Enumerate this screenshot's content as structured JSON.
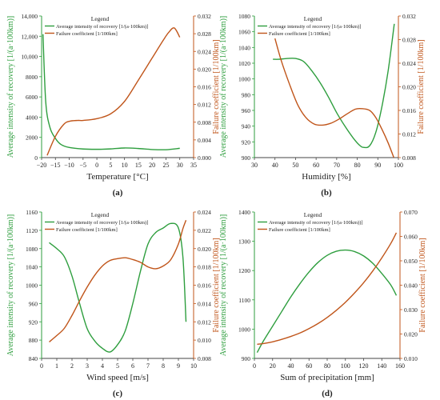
{
  "figure": {
    "colors": {
      "recovery": "#2e9e3e",
      "failure": "#c0551a",
      "axis": "#444444"
    },
    "legend_title": "Legend",
    "legend_recovery": "Average intensity of recovery [1/(a·100km)]",
    "legend_failure": "Failure coefficient [1/100km]"
  },
  "chart_data": [
    {
      "type": "line",
      "panel_label": "(a)",
      "xlabel": "Temperature [°C]",
      "ylabel_left": "Average intensity of recovery [1/(a·100km)]",
      "ylabel_right": "Failure coefficient [1/100km]",
      "xlim": [
        -20,
        35
      ],
      "ylim_left": [
        0,
        14000
      ],
      "ylim_right": [
        0,
        0.032
      ],
      "xticks": [
        -20,
        -15,
        -10,
        -5,
        0,
        5,
        10,
        15,
        20,
        25,
        30,
        35
      ],
      "yticks_left": [
        0,
        2000,
        4000,
        6000,
        8000,
        10000,
        12000,
        14000
      ],
      "yticks_right": [
        0,
        0.004,
        0.008,
        0.012,
        0.016,
        0.02,
        0.024,
        0.028,
        0.032
      ],
      "xtick_labels": [
        "−20",
        "−15",
        "−10",
        "−5",
        "0",
        "5",
        "10",
        "15",
        "20",
        "25",
        "30",
        "35"
      ],
      "ytick_labels_left": [
        "0",
        "2000",
        "4000",
        "6000",
        "8000",
        "10,000",
        "12,000",
        "14,000"
      ],
      "ytick_labels_right": [
        "0.000",
        "0.004",
        "0.008",
        "0.012",
        "0.016",
        "0.020",
        "0.024",
        "0.028",
        "0.032"
      ],
      "legend": {
        "title": "Legend",
        "items": [
          "Average intensity of recovery [1/(a·100km)]",
          "Failure coefficient [1/100km]"
        ]
      },
      "series": [
        {
          "name": "Average intensity of recovery [1/(a·100km)]",
          "axis": "left",
          "x": [
            -19.5,
            -18.5,
            -17,
            -15,
            -13,
            -10,
            -5,
            0,
            5,
            10,
            15,
            20,
            25,
            30
          ],
          "y": [
            12200,
            5500,
            3000,
            1900,
            1300,
            1000,
            850,
            820,
            860,
            950,
            900,
            800,
            780,
            920
          ]
        },
        {
          "name": "Failure coefficient [1/100km]",
          "axis": "right",
          "x": [
            -18,
            -15,
            -12,
            -10,
            -7,
            -5,
            0,
            5,
            10,
            15,
            20,
            24,
            26,
            28,
            30
          ],
          "y": [
            0.0005,
            0.0048,
            0.0075,
            0.0082,
            0.0084,
            0.0084,
            0.0088,
            0.0099,
            0.0127,
            0.0175,
            0.0225,
            0.0265,
            0.0283,
            0.0293,
            0.0272
          ]
        }
      ]
    },
    {
      "type": "line",
      "panel_label": "(b)",
      "xlabel": "Humidity [%]",
      "ylabel_left": "Average intensity of recovery [1/(a·100km)]",
      "ylabel_right": "Failure coefficient [1/100km]",
      "xlim": [
        30,
        100
      ],
      "ylim_left": [
        900,
        1080
      ],
      "ylim_right": [
        0.008,
        0.032
      ],
      "xticks": [
        30,
        40,
        50,
        60,
        70,
        80,
        90,
        100
      ],
      "yticks_left": [
        900,
        920,
        940,
        960,
        980,
        1000,
        1020,
        1040,
        1060,
        1080
      ],
      "yticks_right": [
        0.008,
        0.012,
        0.016,
        0.02,
        0.024,
        0.028,
        0.032
      ],
      "xtick_labels": [
        "30",
        "40",
        "50",
        "60",
        "70",
        "80",
        "90",
        "100"
      ],
      "ytick_labels_left": [
        "900",
        "920",
        "940",
        "960",
        "980",
        "1000",
        "1020",
        "1040",
        "1060",
        "1080"
      ],
      "ytick_labels_right": [
        "0.008",
        "0.012",
        "0.016",
        "0.020",
        "0.024",
        "0.028",
        "0.032"
      ],
      "legend": {
        "title": "Legend",
        "items": [
          "Average intensity of recovery [1/(a·100km)]",
          "Failure coefficient [1/100km]"
        ]
      },
      "series": [
        {
          "name": "Average intensity of recovery [1/(a·100km)]",
          "axis": "left",
          "x": [
            39,
            42,
            46,
            50,
            54,
            58,
            62,
            66,
            70,
            74,
            78,
            81,
            83,
            86,
            89,
            92,
            95,
            98
          ],
          "y": [
            1025,
            1025,
            1026,
            1026,
            1022,
            1010,
            995,
            977,
            957,
            940,
            925,
            916,
            913,
            915,
            932,
            965,
            1010,
            1070
          ]
        },
        {
          "name": "Failure coefficient [1/100km]",
          "axis": "right",
          "x": [
            40,
            43,
            47,
            51,
            55,
            59,
            63,
            67,
            71,
            75,
            79,
            82,
            86,
            89,
            92,
            95,
            98
          ],
          "y": [
            0.0282,
            0.0245,
            0.0205,
            0.017,
            0.0148,
            0.0137,
            0.0135,
            0.0138,
            0.0145,
            0.0154,
            0.0162,
            0.0163,
            0.016,
            0.0148,
            0.0128,
            0.0105,
            0.0078
          ]
        }
      ]
    },
    {
      "type": "line",
      "panel_label": "(c)",
      "xlabel": "Wind speed [m/s]",
      "ylabel_left": "Average intensity of recovery [1/(a·100km)]",
      "ylabel_right": "Failure coefficient [1/100km]",
      "xlim": [
        0,
        10
      ],
      "ylim_left": [
        840,
        1160
      ],
      "ylim_right": [
        0.008,
        0.024
      ],
      "xticks": [
        0,
        1,
        2,
        3,
        4,
        5,
        6,
        7,
        8,
        9,
        10
      ],
      "yticks_left": [
        840,
        880,
        920,
        960,
        1000,
        1040,
        1080,
        1120,
        1160
      ],
      "yticks_right": [
        0.008,
        0.01,
        0.012,
        0.014,
        0.016,
        0.018,
        0.02,
        0.022,
        0.024
      ],
      "xtick_labels": [
        "0",
        "1",
        "2",
        "3",
        "4",
        "5",
        "6",
        "7",
        "8",
        "9",
        "10"
      ],
      "ytick_labels_left": [
        "840",
        "880",
        "920",
        "960",
        "1000",
        "1040",
        "1080",
        "1120",
        "1160"
      ],
      "ytick_labels_right": [
        "0.008",
        "0.010",
        "0.012",
        "0.014",
        "0.016",
        "0.018",
        "0.020",
        "0.022",
        "0.024"
      ],
      "legend": {
        "title": "Legend",
        "items": [
          "Average intensity of recovery [1/(a·100km)]",
          "Failure coefficient [1/100km]"
        ]
      },
      "series": [
        {
          "name": "Average intensity of recovery [1/(a·100km)]",
          "axis": "left",
          "x": [
            0.5,
            1,
            1.5,
            2,
            2.5,
            3,
            3.5,
            4,
            4.5,
            5,
            5.5,
            6,
            6.5,
            7,
            7.5,
            8,
            8.5,
            9,
            9.3,
            9.5
          ],
          "y": [
            1093,
            1080,
            1062,
            1020,
            960,
            905,
            878,
            862,
            854,
            870,
            900,
            960,
            1030,
            1090,
            1115,
            1125,
            1135,
            1125,
            1060,
            920
          ]
        },
        {
          "name": "Failure coefficient [1/100km]",
          "axis": "right",
          "x": [
            0.5,
            1,
            1.5,
            2,
            2.5,
            3,
            3.5,
            4,
            4.5,
            5,
            5.5,
            6,
            6.5,
            7,
            7.5,
            8,
            8.5,
            9,
            9.3,
            9.5
          ],
          "y": [
            0.0098,
            0.0105,
            0.0113,
            0.0127,
            0.0143,
            0.0158,
            0.0171,
            0.0181,
            0.0187,
            0.0189,
            0.019,
            0.0188,
            0.0185,
            0.018,
            0.0178,
            0.0181,
            0.0188,
            0.0205,
            0.0222,
            0.0231
          ]
        }
      ]
    },
    {
      "type": "line",
      "panel_label": "(d)",
      "xlabel": "Sum of precipitation [mm]",
      "ylabel_left": "Average intensity of recovery [1/(a·100km)]",
      "ylabel_right": "Failure coefficient [1/100km]",
      "xlim": [
        0,
        160
      ],
      "ylim_left": [
        900,
        1400
      ],
      "ylim_right": [
        0.01,
        0.07
      ],
      "xticks": [
        0,
        20,
        40,
        60,
        80,
        100,
        120,
        140,
        160
      ],
      "yticks_left": [
        900,
        1000,
        1100,
        1200,
        1300,
        1400
      ],
      "yticks_right": [
        0.01,
        0.02,
        0.03,
        0.04,
        0.05,
        0.06,
        0.07
      ],
      "xtick_labels": [
        "0",
        "20",
        "40",
        "60",
        "80",
        "100",
        "120",
        "140",
        "160"
      ],
      "ytick_labels_left": [
        "900",
        "1000",
        "1100",
        "1200",
        "1300",
        "1400"
      ],
      "ytick_labels_right": [
        "0.010",
        "0.020",
        "0.030",
        "0.040",
        "0.050",
        "0.060",
        "0.070"
      ],
      "legend": {
        "title": "Legend",
        "items": [
          "Average intensity of recovery [1/(a·100km))]",
          "Failure coefficient [1/100km]"
        ]
      },
      "series": [
        {
          "name": "Average intensity of recovery [1/(a·100km))]",
          "axis": "left",
          "x": [
            3,
            10,
            20,
            30,
            40,
            50,
            60,
            70,
            80,
            90,
            100,
            110,
            120,
            130,
            140,
            150,
            156
          ],
          "y": [
            920,
            960,
            1010,
            1060,
            1110,
            1155,
            1195,
            1228,
            1252,
            1266,
            1270,
            1265,
            1250,
            1225,
            1190,
            1150,
            1115
          ]
        },
        {
          "name": "Failure coefficient [1/100km]",
          "axis": "right",
          "x": [
            3,
            10,
            20,
            30,
            40,
            50,
            60,
            70,
            80,
            90,
            100,
            110,
            120,
            130,
            140,
            150,
            156
          ],
          "y": [
            0.0158,
            0.0161,
            0.0168,
            0.0178,
            0.019,
            0.0204,
            0.0222,
            0.0243,
            0.0268,
            0.0297,
            0.033,
            0.0368,
            0.041,
            0.0458,
            0.0512,
            0.0572,
            0.0615
          ]
        }
      ]
    }
  ]
}
